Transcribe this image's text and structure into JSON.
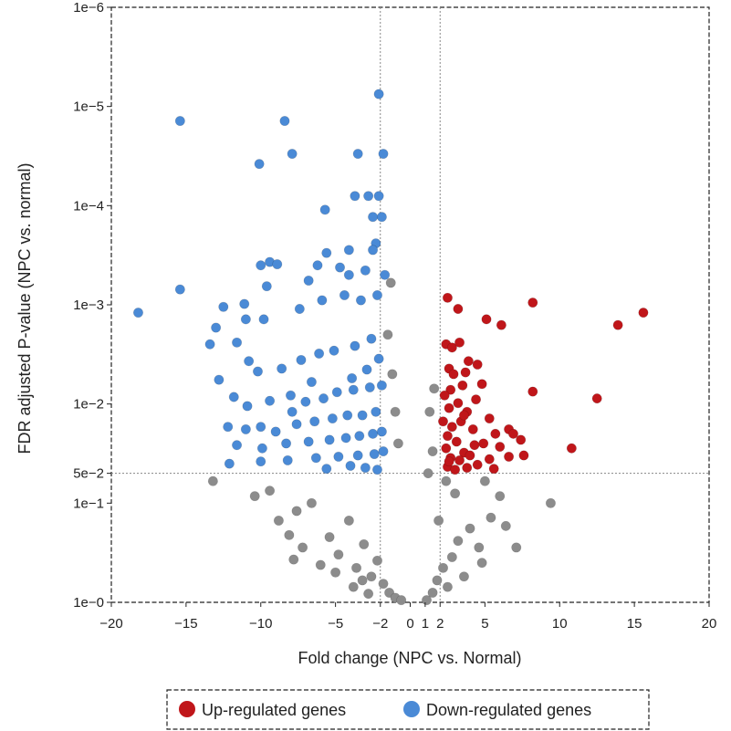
{
  "chart_data": {
    "type": "scatter",
    "title": "",
    "xlabel": "Fold change (NPC vs. Normal)",
    "ylabel": "FDR adjusted P-value (NPC vs. normal)",
    "x_range": [
      -20,
      20
    ],
    "y_range": [
      1,
      1e-06
    ],
    "y_scale": "log",
    "x_ticks": [
      {
        "value": -20,
        "label": "−20"
      },
      {
        "value": -15,
        "label": "−15"
      },
      {
        "value": -10,
        "label": "−10"
      },
      {
        "value": -5,
        "label": "−5"
      },
      {
        "value": -2,
        "label": "−2"
      },
      {
        "value": 0,
        "label": "0"
      },
      {
        "value": 1,
        "label": "1"
      },
      {
        "value": 2,
        "label": "2"
      },
      {
        "value": 5,
        "label": "5"
      },
      {
        "value": 10,
        "label": "10"
      },
      {
        "value": 15,
        "label": "15"
      },
      {
        "value": 20,
        "label": "20"
      }
    ],
    "y_ticks": [
      {
        "value": 1e-06,
        "label": "1e−6"
      },
      {
        "value": 1e-05,
        "label": "1e−5"
      },
      {
        "value": 0.0001,
        "label": "1e−4"
      },
      {
        "value": 0.001,
        "label": "1e−3"
      },
      {
        "value": 0.01,
        "label": "1e−2"
      },
      {
        "value": 0.05,
        "label": "5e−2"
      },
      {
        "value": 0.1,
        "label": "1e−1"
      },
      {
        "value": 1,
        "label": "1e−0"
      }
    ],
    "thresholds": {
      "fold_change": [
        -2,
        2
      ],
      "p_value": 0.05
    },
    "legend_position": "bottom",
    "series": [
      {
        "name": "Up-regulated genes",
        "color": "#c0161a",
        "points": [
          [
            2.5,
            0.00085
          ],
          [
            3.2,
            0.0011
          ],
          [
            5.1,
            0.0014
          ],
          [
            6.1,
            0.0016
          ],
          [
            8.2,
            0.00095
          ],
          [
            13.9,
            0.0016
          ],
          [
            15.6,
            0.0012
          ],
          [
            12.5,
            0.0088
          ],
          [
            10.8,
            0.028
          ],
          [
            8.2,
            0.0075
          ],
          [
            2.4,
            0.0025
          ],
          [
            2.8,
            0.0027
          ],
          [
            3.3,
            0.0024
          ],
          [
            4.5,
            0.004
          ],
          [
            3.9,
            0.0037
          ],
          [
            2.6,
            0.0044
          ],
          [
            3.7,
            0.0048
          ],
          [
            4.8,
            0.0063
          ],
          [
            3.5,
            0.0065
          ],
          [
            2.7,
            0.0072
          ],
          [
            2.3,
            0.0082
          ],
          [
            4.4,
            0.009
          ],
          [
            3.2,
            0.0098
          ],
          [
            2.6,
            0.011
          ],
          [
            3.8,
            0.012
          ],
          [
            5.3,
            0.014
          ],
          [
            3.4,
            0.015
          ],
          [
            2.8,
            0.017
          ],
          [
            4.2,
            0.018
          ],
          [
            5.7,
            0.02
          ],
          [
            6.6,
            0.018
          ],
          [
            6.9,
            0.02
          ],
          [
            7.4,
            0.023
          ],
          [
            2.5,
            0.021
          ],
          [
            3.1,
            0.024
          ],
          [
            4.9,
            0.025
          ],
          [
            6.0,
            0.027
          ],
          [
            2.4,
            0.028
          ],
          [
            3.6,
            0.031
          ],
          [
            4.0,
            0.033
          ],
          [
            7.6,
            0.033
          ],
          [
            2.7,
            0.035
          ],
          [
            3.3,
            0.037
          ],
          [
            5.3,
            0.036
          ],
          [
            6.6,
            0.034
          ],
          [
            4.5,
            0.041
          ],
          [
            2.5,
            0.043
          ],
          [
            3.8,
            0.044
          ],
          [
            5.6,
            0.045
          ],
          [
            3.0,
            0.046
          ],
          [
            2.6,
            0.038
          ],
          [
            4.3,
            0.026
          ],
          [
            3.6,
            0.013
          ],
          [
            2.9,
            0.005
          ],
          [
            2.2,
            0.015
          ]
        ]
      },
      {
        "name": "Down-regulated genes",
        "color": "#4a8ad6",
        "points": [
          [
            -18.2,
            0.0012
          ],
          [
            -15.4,
            0.0007
          ],
          [
            -15.4,
            1.4e-05
          ],
          [
            -8.4,
            1.4e-05
          ],
          [
            -2.1,
            7.5e-06
          ],
          [
            -10.1,
            3.8e-05
          ],
          [
            -7.9,
            3e-05
          ],
          [
            -3.5,
            3e-05
          ],
          [
            -1.8,
            3e-05
          ],
          [
            -3.7,
            8e-05
          ],
          [
            -2.8,
            8e-05
          ],
          [
            -2.1,
            8e-05
          ],
          [
            -5.7,
            0.00011
          ],
          [
            -2.5,
            0.00013
          ],
          [
            -1.9,
            0.00013
          ],
          [
            -2.3,
            0.00024
          ],
          [
            -2.5,
            0.00028
          ],
          [
            -4.1,
            0.00028
          ],
          [
            -5.6,
            0.0003
          ],
          [
            -6.2,
            0.0004
          ],
          [
            -9.4,
            0.00037
          ],
          [
            -8.9,
            0.00039
          ],
          [
            -10.0,
            0.0004
          ],
          [
            -4.7,
            0.00042
          ],
          [
            -3.0,
            0.00045
          ],
          [
            -4.1,
            0.0005
          ],
          [
            -6.8,
            0.00057
          ],
          [
            -9.6,
            0.00065
          ],
          [
            -11.1,
            0.00098
          ],
          [
            -12.5,
            0.00105
          ],
          [
            -13.0,
            0.0017
          ],
          [
            -13.4,
            0.0025
          ],
          [
            -11.6,
            0.0024
          ],
          [
            -11.0,
            0.0014
          ],
          [
            -9.8,
            0.0014
          ],
          [
            -7.4,
            0.0011
          ],
          [
            -5.9,
            0.0009
          ],
          [
            -4.4,
            0.0008
          ],
          [
            -3.3,
            0.0009
          ],
          [
            -2.2,
            0.0008
          ],
          [
            -1.7,
            0.0005
          ],
          [
            -12.8,
            0.0057
          ],
          [
            -10.8,
            0.0037
          ],
          [
            -10.2,
            0.0047
          ],
          [
            -8.6,
            0.0044
          ],
          [
            -7.3,
            0.0036
          ],
          [
            -6.1,
            0.0031
          ],
          [
            -5.1,
            0.0029
          ],
          [
            -3.7,
            0.0026
          ],
          [
            -2.6,
            0.0022
          ],
          [
            -11.8,
            0.0085
          ],
          [
            -10.9,
            0.0105
          ],
          [
            -9.4,
            0.0093
          ],
          [
            -8.0,
            0.0082
          ],
          [
            -7.0,
            0.0095
          ],
          [
            -5.8,
            0.0088
          ],
          [
            -4.9,
            0.0076
          ],
          [
            -3.8,
            0.0072
          ],
          [
            -2.7,
            0.0068
          ],
          [
            -1.9,
            0.0065
          ],
          [
            -12.2,
            0.017
          ],
          [
            -11.0,
            0.018
          ],
          [
            -10.0,
            0.017
          ],
          [
            -9.0,
            0.019
          ],
          [
            -7.6,
            0.016
          ],
          [
            -6.4,
            0.015
          ],
          [
            -5.2,
            0.014
          ],
          [
            -4.2,
            0.013
          ],
          [
            -3.2,
            0.013
          ],
          [
            -2.3,
            0.012
          ],
          [
            -11.6,
            0.026
          ],
          [
            -9.9,
            0.028
          ],
          [
            -8.3,
            0.025
          ],
          [
            -6.8,
            0.024
          ],
          [
            -5.4,
            0.023
          ],
          [
            -4.3,
            0.022
          ],
          [
            -3.4,
            0.021
          ],
          [
            -2.5,
            0.02
          ],
          [
            -1.9,
            0.019
          ],
          [
            -12.1,
            0.04
          ],
          [
            -10.0,
            0.038
          ],
          [
            -8.2,
            0.037
          ],
          [
            -6.3,
            0.035
          ],
          [
            -4.8,
            0.034
          ],
          [
            -3.5,
            0.033
          ],
          [
            -2.4,
            0.032
          ],
          [
            -1.8,
            0.03
          ],
          [
            -4.0,
            0.042
          ],
          [
            -3.0,
            0.044
          ],
          [
            -2.2,
            0.046
          ],
          [
            -5.6,
            0.045
          ],
          [
            -2.9,
            0.0045
          ],
          [
            -3.9,
            0.0055
          ],
          [
            -2.1,
            0.0035
          ],
          [
            -6.6,
            0.006
          ],
          [
            -7.9,
            0.012
          ]
        ]
      },
      {
        "name": "",
        "color": "#8c8c8c",
        "points": [
          [
            -13.2,
            0.06
          ],
          [
            -10.4,
            0.085
          ],
          [
            -9.4,
            0.075
          ],
          [
            -8.8,
            0.15
          ],
          [
            -8.1,
            0.21
          ],
          [
            -7.6,
            0.12
          ],
          [
            -7.2,
            0.28
          ],
          [
            -6.6,
            0.1
          ],
          [
            -6.0,
            0.42
          ],
          [
            -5.4,
            0.22
          ],
          [
            -4.8,
            0.33
          ],
          [
            -4.1,
            0.15
          ],
          [
            -3.6,
            0.45
          ],
          [
            -3.1,
            0.26
          ],
          [
            -2.6,
            0.55
          ],
          [
            -2.2,
            0.38
          ],
          [
            -1.8,
            0.65
          ],
          [
            -1.4,
            0.8
          ],
          [
            -1.0,
            0.9
          ],
          [
            -0.6,
            0.95
          ],
          [
            -1.2,
            0.005
          ],
          [
            -1.0,
            0.012
          ],
          [
            -0.8,
            0.025
          ],
          [
            -1.5,
            0.002
          ],
          [
            -1.3,
            0.0006
          ],
          [
            -7.8,
            0.37
          ],
          [
            -5.0,
            0.5
          ],
          [
            -3.8,
            0.7
          ],
          [
            -2.8,
            0.82
          ],
          [
            -3.2,
            0.6
          ],
          [
            1.1,
            0.95
          ],
          [
            1.5,
            0.8
          ],
          [
            1.8,
            0.6
          ],
          [
            2.2,
            0.45
          ],
          [
            2.8,
            0.35
          ],
          [
            3.2,
            0.24
          ],
          [
            4.0,
            0.18
          ],
          [
            4.6,
            0.28
          ],
          [
            5.4,
            0.14
          ],
          [
            6.0,
            0.085
          ],
          [
            6.4,
            0.17
          ],
          [
            7.1,
            0.28
          ],
          [
            9.4,
            0.1
          ],
          [
            4.8,
            0.4
          ],
          [
            3.6,
            0.55
          ],
          [
            2.5,
            0.7
          ],
          [
            1.9,
            0.15
          ],
          [
            1.5,
            0.03
          ],
          [
            1.3,
            0.012
          ],
          [
            1.6,
            0.007
          ],
          [
            1.2,
            0.05
          ],
          [
            3.0,
            0.08
          ],
          [
            2.4,
            0.06
          ],
          [
            5.0,
            0.06
          ]
        ]
      }
    ]
  }
}
